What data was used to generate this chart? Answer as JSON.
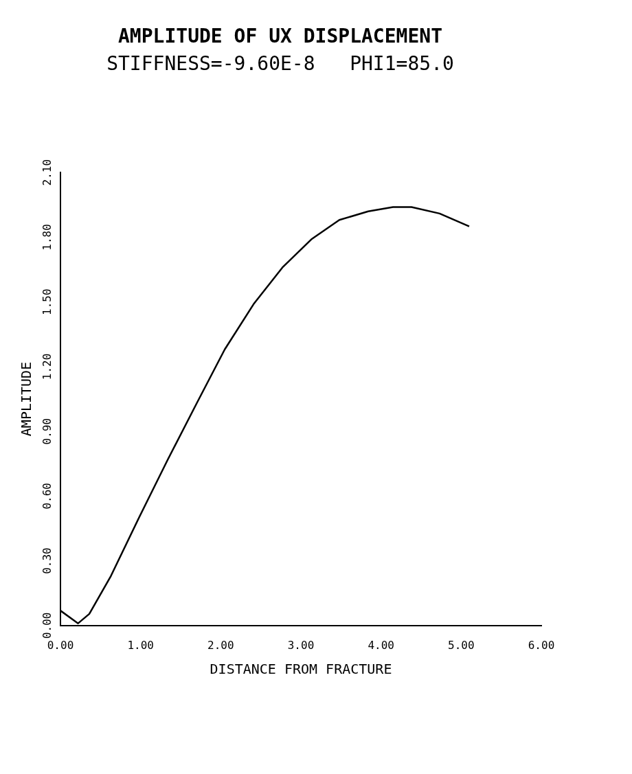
{
  "chart_data": {
    "type": "line",
    "title": "AMPLITUDE OF UX DISPLACEMENT",
    "subtitle": "STIFFNESS=-9.60E-8   PHI1=85.0",
    "xlabel": "DISTANCE FROM FRACTURE",
    "ylabel": "AMPLITUDE",
    "series": [
      {
        "color": "#000000",
        "x": [
          0,
          0.22,
          0.36,
          0.63,
          0.98,
          1.34,
          1.7,
          2.05,
          2.41,
          2.77,
          3.13,
          3.48,
          3.84,
          4.15,
          4.38,
          4.73,
          5.1
        ],
        "values": [
          0.069,
          0.01,
          0.054,
          0.23,
          0.5,
          0.77,
          1.03,
          1.28,
          1.49,
          1.66,
          1.79,
          1.88,
          1.92,
          1.94,
          1.94,
          1.91,
          1.85
        ]
      }
    ],
    "xlim": [
      0,
      6
    ],
    "xticks": [
      {
        "value": 0,
        "label": "0.00"
      },
      {
        "value": 1,
        "label": "1.00"
      },
      {
        "value": 2,
        "label": "2.00"
      },
      {
        "value": 3,
        "label": "3.00"
      },
      {
        "value": 4,
        "label": "4.00"
      },
      {
        "value": 5,
        "label": "5.00"
      },
      {
        "value": 6,
        "label": "6.00"
      }
    ],
    "ylim": [
      0,
      2.1
    ],
    "yticks": [
      {
        "value": 0,
        "label": "0.00"
      },
      {
        "value": 0.3,
        "label": "0.30"
      },
      {
        "value": 0.6,
        "label": "0.60"
      },
      {
        "value": 0.9,
        "label": "0.90"
      },
      {
        "value": 1.2,
        "label": "1.20"
      },
      {
        "value": 1.5,
        "label": "1.50"
      },
      {
        "value": 1.8,
        "label": "1.80"
      },
      {
        "value": 2.1,
        "label": "2.10"
      }
    ],
    "grid": false,
    "legend": false,
    "marker": "none",
    "line_style": "solid"
  }
}
